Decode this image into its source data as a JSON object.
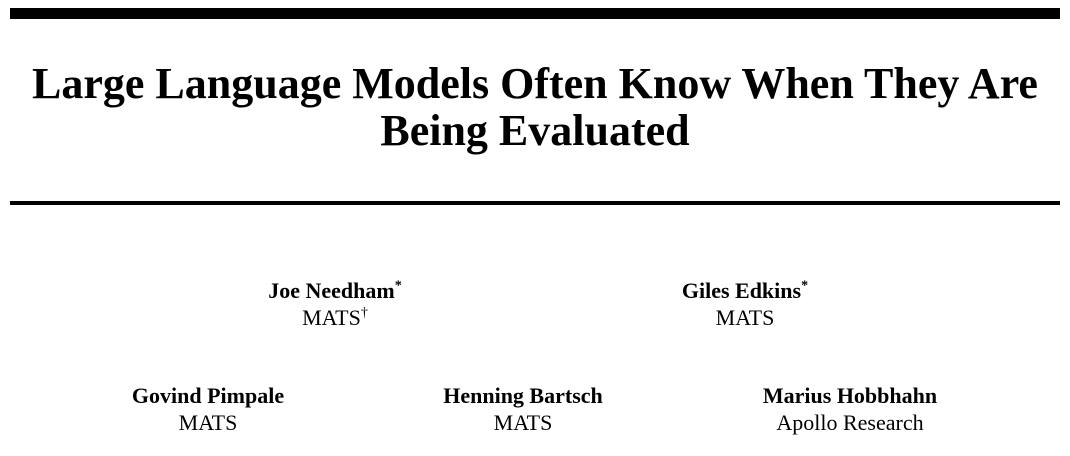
{
  "title": {
    "line1": "Large Language Models Often Know When They Are",
    "line2": "Being Evaluated",
    "full": "Large Language Models Often Know When They Are Being Evaluated"
  },
  "authors_row1": [
    {
      "name": "Joe Needham",
      "name_marker": "*",
      "affiliation": "MATS",
      "affiliation_marker": "†"
    },
    {
      "name": "Giles Edkins",
      "name_marker": "*",
      "affiliation": "MATS",
      "affiliation_marker": ""
    }
  ],
  "authors_row2": [
    {
      "name": "Govind Pimpale",
      "name_marker": "",
      "affiliation": "MATS",
      "affiliation_marker": ""
    },
    {
      "name": "Henning Bartsch",
      "name_marker": "",
      "affiliation": "MATS",
      "affiliation_marker": ""
    },
    {
      "name": "Marius Hobbhahn",
      "name_marker": "",
      "affiliation": "Apollo Research",
      "affiliation_marker": ""
    }
  ],
  "colors": {
    "text": "#000000",
    "background": "#ffffff",
    "rule": "#000000"
  }
}
